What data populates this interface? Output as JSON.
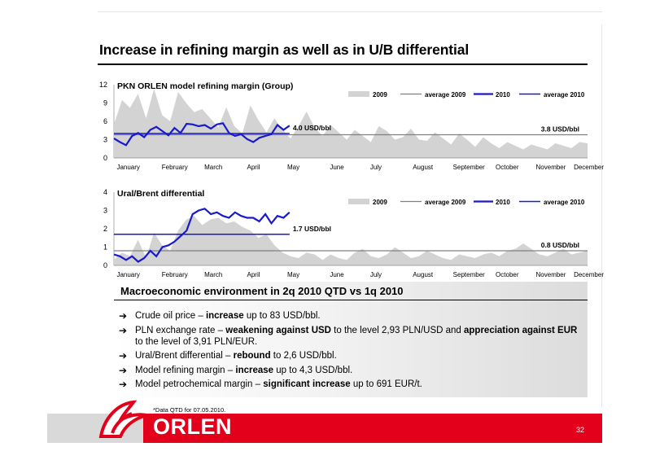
{
  "slide": {
    "title": "Increase in refining margin as well as in U/B differential",
    "footnote": "*Data QTD for 07.05.2010.",
    "page_number": "32",
    "logo_text": "ORLEN"
  },
  "colors": {
    "area_2009": "#d3d3d3",
    "avg_2009": "#808080",
    "line_2010": "#1a1acc",
    "avg_2010": "#1a1acc",
    "brand_red": "#e3001b"
  },
  "months": [
    "January",
    "February",
    "March",
    "April",
    "May",
    "June",
    "July",
    "August",
    "September",
    "October",
    "November",
    "December"
  ],
  "chart_data": [
    {
      "type": "line",
      "title": "PKN ORLEN model refining margin (Group)",
      "ylim": [
        0,
        12
      ],
      "yticks": [
        "0",
        "3",
        "6",
        "9",
        "12"
      ],
      "legend": [
        "2009",
        "average 2009",
        "2010",
        "average 2010"
      ],
      "legend_position": "top-right",
      "annotations": {
        "avg_2010_label": "4.0 USD/bbl",
        "avg_2009_label": "3.8 USD/bbl"
      },
      "average_2009": 3.8,
      "average_2010": 4.0,
      "series": [
        {
          "name": "2009",
          "style": "area",
          "values": [
            5.5,
            9.5,
            8.2,
            10.5,
            6.5,
            11.3,
            7.0,
            6.0,
            10.8,
            9.0,
            7.5,
            8.0,
            6.5,
            5.0,
            8.3,
            5.2,
            4.0,
            8.6,
            6.2,
            4.2,
            6.5,
            4.6,
            3.2,
            5.2,
            7.6,
            5.0,
            3.6,
            5.4,
            4.2,
            3.0,
            4.6,
            3.6,
            2.6,
            5.2,
            4.4,
            3.0,
            3.4,
            4.8,
            3.0,
            2.8,
            4.2,
            3.2,
            2.2,
            4.0,
            3.0,
            1.8,
            3.4,
            2.4,
            1.6,
            2.6,
            2.0,
            1.4,
            2.2,
            1.8,
            1.4,
            2.4,
            2.0,
            1.6,
            2.6,
            2.4
          ]
        },
        {
          "name": "2010",
          "style": "line",
          "values": [
            3.2,
            2.6,
            2.1,
            3.6,
            4.1,
            3.4,
            4.6,
            5.1,
            4.4,
            3.7,
            4.9,
            4.1,
            5.6,
            5.5,
            5.2,
            5.4,
            4.8,
            5.5,
            5.7,
            4.1,
            3.6,
            3.9,
            3.1,
            2.6,
            3.3,
            3.6,
            3.9,
            5.4,
            4.6,
            5.3
          ]
        }
      ]
    },
    {
      "type": "line",
      "title": "Ural/Brent differential",
      "ylim": [
        0,
        4
      ],
      "yticks": [
        "0",
        "1",
        "2",
        "3",
        "4"
      ],
      "legend": [
        "2009",
        "average 2009",
        "2010",
        "average 2010"
      ],
      "legend_position": "top-right",
      "annotations": {
        "avg_2010_label": "1.7 USD/bbl",
        "avg_2009_label": "0.8 USD/bbl"
      },
      "average_2009": 0.8,
      "average_2010": 1.7,
      "series": [
        {
          "name": "2009",
          "style": "area",
          "values": [
            0.3,
            0.7,
            0.5,
            1.4,
            0.4,
            1.8,
            1.1,
            0.8,
            1.9,
            2.5,
            2.7,
            2.2,
            2.5,
            2.6,
            2.3,
            2.4,
            2.1,
            1.9,
            1.5,
            1.7,
            1.1,
            0.7,
            0.5,
            0.4,
            0.7,
            0.6,
            0.3,
            0.6,
            0.4,
            0.3,
            0.7,
            0.9,
            0.5,
            0.4,
            0.6,
            1.0,
            0.7,
            0.4,
            0.5,
            0.8,
            0.6,
            0.4,
            0.3,
            0.6,
            0.5,
            0.4,
            0.6,
            0.7,
            0.5,
            0.8,
            0.9,
            1.2,
            0.9,
            0.6,
            0.5,
            0.7,
            0.9,
            0.6,
            0.7,
            0.8
          ]
        },
        {
          "name": "2010",
          "style": "line",
          "values": [
            0.6,
            0.5,
            0.3,
            0.5,
            0.2,
            0.4,
            0.8,
            0.5,
            1.0,
            1.1,
            1.3,
            1.6,
            1.9,
            2.8,
            3.0,
            3.1,
            2.8,
            2.9,
            2.7,
            2.6,
            2.9,
            2.7,
            2.6,
            2.6,
            2.4,
            2.8,
            2.3,
            2.7,
            2.6,
            2.9
          ]
        }
      ]
    }
  ],
  "macro": {
    "title": "Macroeconomic environment in 2q 2010 QTD vs 1q 2010",
    "bullets": [
      {
        "pre": "Crude oil price – ",
        "b1": "increase",
        "mid": " up to 83 USD/bbl.",
        "b2": "",
        "post": ""
      },
      {
        "pre": "PLN exchange rate – ",
        "b1": "weakening against USD",
        "mid": " to the level 2,93 PLN/USD and ",
        "b2": "appreciation against EUR",
        "post": " to the level of 3,91 PLN/EUR."
      },
      {
        "pre": "Ural/Brent differential – ",
        "b1": "rebound",
        "mid": " to 2,6 USD/bbl.",
        "b2": "",
        "post": ""
      },
      {
        "pre": "Model refining margin – ",
        "b1": "increase",
        "mid": " up to 4,3 USD/bbl.",
        "b2": "",
        "post": ""
      },
      {
        "pre": "Model petrochemical margin – ",
        "b1": "significant increase",
        "mid": " up to 691 EUR/t.",
        "b2": "",
        "post": ""
      }
    ]
  }
}
